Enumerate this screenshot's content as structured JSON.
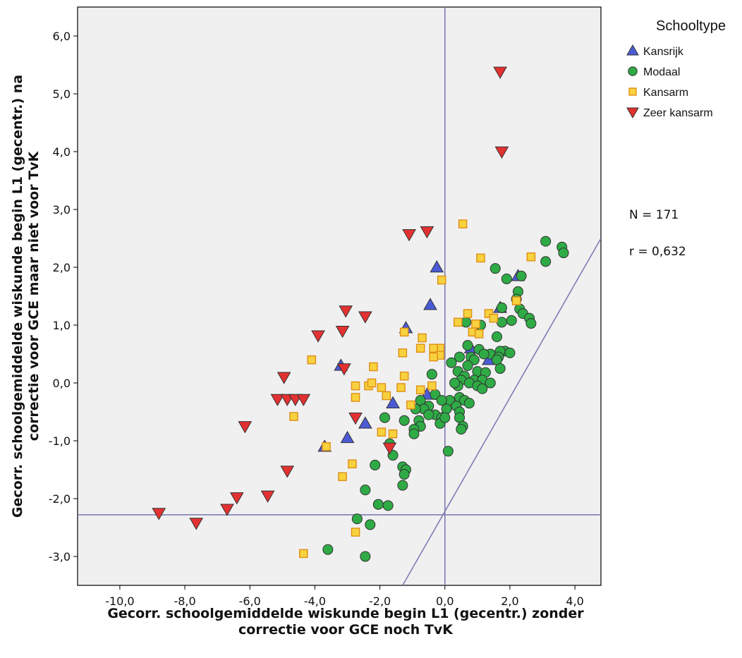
{
  "chart_data": {
    "type": "scatter",
    "xlabel": [
      "Gecorr. schoolgemiddelde wiskunde begin L1 (gecentr.) zonder",
      "correctie voor GCE noch TvK"
    ],
    "ylabel": [
      "Gecorr. schoolgemiddelde wiskunde begin L1 (gecentr.) na",
      "correctie voor GCE maar niet voor TvK"
    ],
    "xlim": [
      -11.3,
      4.8
    ],
    "ylim": [
      -3.5,
      6.5
    ],
    "xticks": [
      -10,
      -8,
      -6,
      -4,
      -2,
      0,
      2,
      4
    ],
    "xtick_labels": [
      "-10,0",
      "-8,0",
      "-6,0",
      "-4,0",
      "-2,0",
      "0,0",
      "2,0",
      "4,0"
    ],
    "yticks": [
      -3,
      -2,
      -1,
      0,
      1,
      2,
      3,
      4,
      5,
      6
    ],
    "ytick_labels": [
      "-3,0",
      "-2,0",
      "-1,0",
      "0,0",
      "1,0",
      "2,0",
      "3,0",
      "4,0",
      "5,0",
      "6,0"
    ],
    "grid": false,
    "legend_title": "Schooltype",
    "legend_position": "right",
    "annotations": [
      "N = 171",
      "r = 0,632"
    ],
    "reference_lines": [
      {
        "type": "vertical",
        "x": 0
      },
      {
        "type": "horizontal",
        "y": -2.28
      },
      {
        "type": "line",
        "x1": -1.3,
        "y1": -3.5,
        "x2": 4.8,
        "y2": 2.5
      }
    ],
    "series": [
      {
        "name": "Kansrijk",
        "marker": "triangle-up",
        "color": "#4a5bd4",
        "points": [
          [
            -0.25,
            2.0
          ],
          [
            -0.45,
            1.35
          ],
          [
            -1.2,
            0.95
          ],
          [
            -3.2,
            0.3
          ],
          [
            -1.6,
            -0.35
          ],
          [
            -2.45,
            -0.7
          ],
          [
            -3.0,
            -0.95
          ],
          [
            -3.7,
            -1.1
          ],
          [
            -0.55,
            -0.2
          ],
          [
            0.8,
            0.6
          ],
          [
            1.7,
            1.3
          ],
          [
            2.25,
            1.85
          ],
          [
            1.35,
            0.4
          ]
        ]
      },
      {
        "name": "Modaal",
        "marker": "circle",
        "color": "#2eab45",
        "points": [
          [
            3.1,
            2.45
          ],
          [
            3.6,
            2.35
          ],
          [
            3.65,
            2.25
          ],
          [
            3.1,
            2.1
          ],
          [
            1.55,
            1.98
          ],
          [
            1.9,
            1.8
          ],
          [
            2.35,
            1.85
          ],
          [
            2.25,
            1.58
          ],
          [
            2.2,
            1.45
          ],
          [
            1.75,
            1.3
          ],
          [
            2.3,
            1.28
          ],
          [
            2.4,
            1.2
          ],
          [
            2.6,
            1.12
          ],
          [
            2.05,
            1.08
          ],
          [
            1.75,
            1.05
          ],
          [
            2.65,
            1.03
          ],
          [
            0.65,
            1.05
          ],
          [
            1.1,
            1.0
          ],
          [
            1.6,
            0.8
          ],
          [
            0.7,
            0.65
          ],
          [
            1.05,
            0.58
          ],
          [
            1.4,
            0.5
          ],
          [
            1.85,
            0.55
          ],
          [
            2.0,
            0.52
          ],
          [
            1.7,
            0.55
          ],
          [
            0.45,
            0.45
          ],
          [
            0.8,
            0.45
          ],
          [
            1.2,
            0.5
          ],
          [
            1.65,
            0.45
          ],
          [
            1.6,
            0.4
          ],
          [
            0.9,
            0.4
          ],
          [
            0.2,
            0.35
          ],
          [
            0.7,
            0.3
          ],
          [
            1.7,
            0.25
          ],
          [
            1.0,
            0.2
          ],
          [
            0.4,
            0.2
          ],
          [
            1.25,
            0.18
          ],
          [
            0.6,
            0.12
          ],
          [
            -0.4,
            0.15
          ],
          [
            0.9,
            0.05
          ],
          [
            1.15,
            0.05
          ],
          [
            0.5,
            0.05
          ],
          [
            0.75,
            0.0
          ],
          [
            1.4,
            0.0
          ],
          [
            1.0,
            -0.05
          ],
          [
            0.4,
            -0.05
          ],
          [
            1.15,
            -0.1
          ],
          [
            -0.3,
            -0.2
          ],
          [
            0.45,
            -0.25
          ],
          [
            -0.75,
            -0.3
          ],
          [
            0.6,
            -0.3
          ],
          [
            0.15,
            -0.3
          ],
          [
            -0.1,
            -0.3
          ],
          [
            0.75,
            -0.35
          ],
          [
            -0.5,
            -0.4
          ],
          [
            0.35,
            -0.4
          ],
          [
            0.05,
            -0.45
          ],
          [
            -0.65,
            -0.45
          ],
          [
            0.45,
            -0.5
          ],
          [
            -0.3,
            -0.55
          ],
          [
            -0.8,
            -0.65
          ],
          [
            -0.75,
            -0.75
          ],
          [
            -0.1,
            -0.6
          ],
          [
            0.45,
            -0.6
          ],
          [
            -1.25,
            -0.65
          ],
          [
            0.55,
            -0.75
          ],
          [
            -0.95,
            -0.8
          ],
          [
            -0.95,
            -0.88
          ],
          [
            0.5,
            -0.8
          ],
          [
            -1.7,
            -1.05
          ],
          [
            -1.6,
            -1.25
          ],
          [
            -0.5,
            -0.55
          ],
          [
            -0.9,
            -0.45
          ],
          [
            -0.15,
            -0.7
          ],
          [
            -1.85,
            -0.6
          ],
          [
            -1.3,
            -1.45
          ],
          [
            -1.2,
            -1.5
          ],
          [
            -2.15,
            -1.42
          ],
          [
            -1.25,
            -1.58
          ],
          [
            -1.3,
            -1.77
          ],
          [
            -2.45,
            -1.85
          ],
          [
            -2.05,
            -2.1
          ],
          [
            -1.75,
            -2.12
          ],
          [
            -2.7,
            -2.35
          ],
          [
            -2.3,
            -2.45
          ],
          [
            -3.6,
            -2.88
          ],
          [
            -2.45,
            -3.0
          ],
          [
            0.1,
            -1.18
          ],
          [
            0.0,
            -0.6
          ],
          [
            0.3,
            0.0
          ]
        ]
      },
      {
        "name": "Kansarm",
        "marker": "square",
        "color": "#f7d23e",
        "points": [
          [
            0.55,
            2.75
          ],
          [
            2.65,
            2.18
          ],
          [
            1.1,
            2.16
          ],
          [
            -0.1,
            1.78
          ],
          [
            2.2,
            1.42
          ],
          [
            0.7,
            1.2
          ],
          [
            1.35,
            1.2
          ],
          [
            1.5,
            1.12
          ],
          [
            0.4,
            1.05
          ],
          [
            0.95,
            1.02
          ],
          [
            0.85,
            0.88
          ],
          [
            1.05,
            0.85
          ],
          [
            -1.25,
            0.88
          ],
          [
            -0.7,
            0.78
          ],
          [
            -0.75,
            0.6
          ],
          [
            -0.15,
            0.6
          ],
          [
            -0.35,
            0.6
          ],
          [
            -1.3,
            0.52
          ],
          [
            -0.15,
            0.48
          ],
          [
            -0.35,
            0.45
          ],
          [
            -4.1,
            0.4
          ],
          [
            -2.2,
            0.28
          ],
          [
            -1.25,
            0.12
          ],
          [
            -2.75,
            -0.05
          ],
          [
            -2.35,
            -0.05
          ],
          [
            -2.25,
            0.0
          ],
          [
            -1.95,
            -0.08
          ],
          [
            -1.35,
            -0.08
          ],
          [
            -0.4,
            -0.05
          ],
          [
            -0.75,
            -0.12
          ],
          [
            -2.75,
            -0.25
          ],
          [
            -1.8,
            -0.22
          ],
          [
            -1.05,
            -0.38
          ],
          [
            -4.65,
            -0.58
          ],
          [
            -1.95,
            -0.85
          ],
          [
            -1.6,
            -0.88
          ],
          [
            -3.65,
            -1.1
          ],
          [
            -2.85,
            -1.4
          ],
          [
            -3.15,
            -1.62
          ],
          [
            -2.75,
            -2.58
          ],
          [
            -4.35,
            -2.95
          ]
        ]
      },
      {
        "name": "Zeer kansarm",
        "marker": "triangle-down",
        "color": "#e33131",
        "points": [
          [
            1.7,
            5.38
          ],
          [
            1.75,
            4.0
          ],
          [
            -0.55,
            2.62
          ],
          [
            -1.1,
            2.57
          ],
          [
            -3.05,
            1.25
          ],
          [
            -2.45,
            1.15
          ],
          [
            -3.15,
            0.9
          ],
          [
            -3.9,
            0.82
          ],
          [
            -3.1,
            0.25
          ],
          [
            -4.95,
            0.1
          ],
          [
            -5.15,
            -0.28
          ],
          [
            -4.85,
            -0.28
          ],
          [
            -4.6,
            -0.28
          ],
          [
            -4.35,
            -0.28
          ],
          [
            -6.15,
            -0.75
          ],
          [
            -2.75,
            -0.6
          ],
          [
            -1.7,
            -1.12
          ],
          [
            -4.85,
            -1.52
          ],
          [
            -5.45,
            -1.95
          ],
          [
            -6.4,
            -1.98
          ],
          [
            -6.7,
            -2.18
          ],
          [
            -8.8,
            -2.25
          ],
          [
            -7.65,
            -2.42
          ]
        ]
      }
    ]
  }
}
